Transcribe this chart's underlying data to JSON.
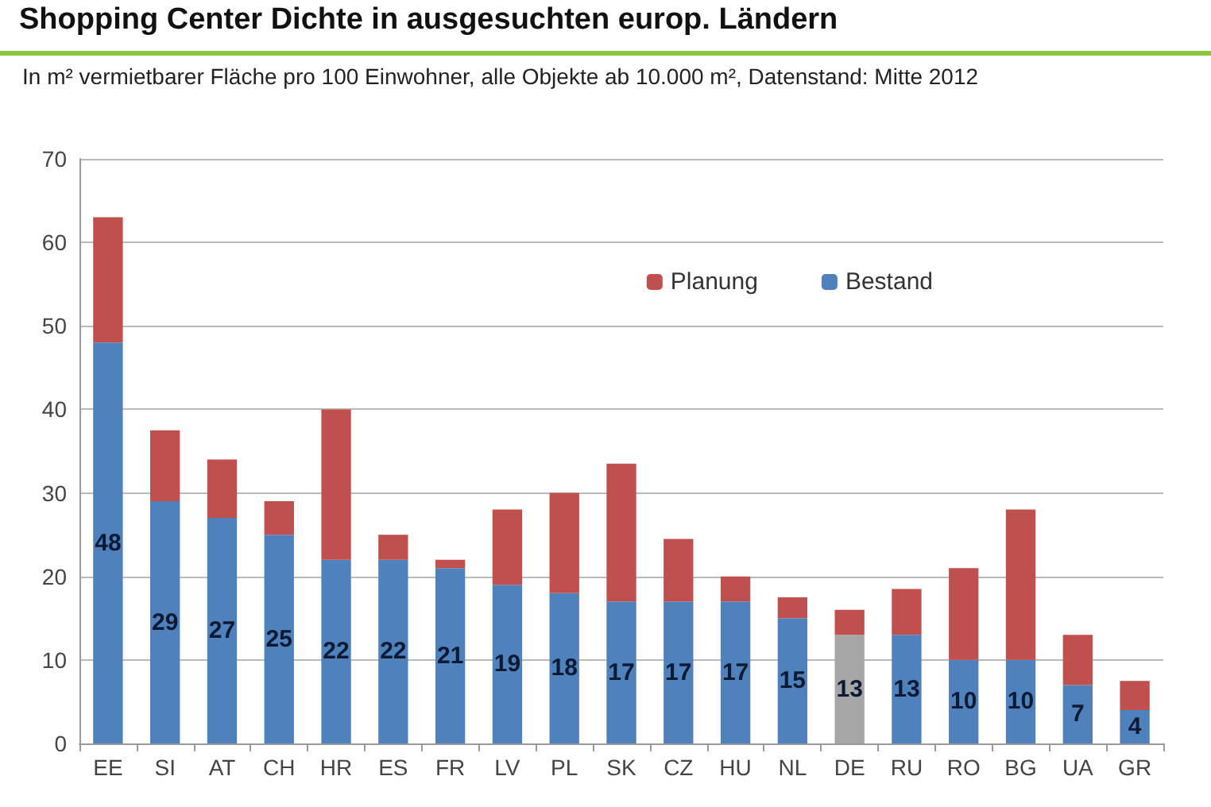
{
  "chart_data": {
    "type": "bar",
    "title": "Shopping Center Dichte in ausgesuchten europ. Ländern",
    "subtitle": "In m² vermietbarer Fläche pro 100 Einwohner, alle Objekte ab 10.000 m², Datenstand: Mitte 2012",
    "categories": [
      "EE",
      "SI",
      "AT",
      "CH",
      "HR",
      "ES",
      "FR",
      "LV",
      "PL",
      "SK",
      "CZ",
      "HU",
      "NL",
      "DE",
      "RU",
      "RO",
      "BG",
      "UA",
      "GR"
    ],
    "stacked": true,
    "series": [
      {
        "name": "Bestand",
        "color": "#4f81bd",
        "colors": [
          "#4f81bd",
          "#4f81bd",
          "#4f81bd",
          "#4f81bd",
          "#4f81bd",
          "#4f81bd",
          "#4f81bd",
          "#4f81bd",
          "#4f81bd",
          "#4f81bd",
          "#4f81bd",
          "#4f81bd",
          "#4f81bd",
          "#a6a6a6",
          "#4f81bd",
          "#4f81bd",
          "#4f81bd",
          "#4f81bd",
          "#4f81bd"
        ],
        "values": [
          48,
          29,
          27,
          25,
          22,
          22,
          21,
          19,
          18,
          17,
          17,
          17,
          15,
          13,
          13,
          10,
          10,
          7,
          4
        ],
        "value_labels": [
          "48",
          "29",
          "27",
          "25",
          "22",
          "22",
          "21",
          "19",
          "18",
          "17",
          "17",
          "17",
          "15",
          "13",
          "13",
          "10",
          "10",
          "7",
          "4"
        ]
      },
      {
        "name": "Planung",
        "color": "#c0504d",
        "values": [
          15,
          8.5,
          7,
          4,
          18,
          3,
          1,
          9,
          12,
          16.5,
          7.5,
          3,
          2.5,
          3,
          5.5,
          11,
          18,
          6,
          3.5
        ]
      }
    ],
    "ylim": [
      0,
      70
    ],
    "yticks": [
      0,
      10,
      20,
      30,
      40,
      50,
      60,
      70
    ],
    "grid": "y",
    "legend": "top right"
  }
}
